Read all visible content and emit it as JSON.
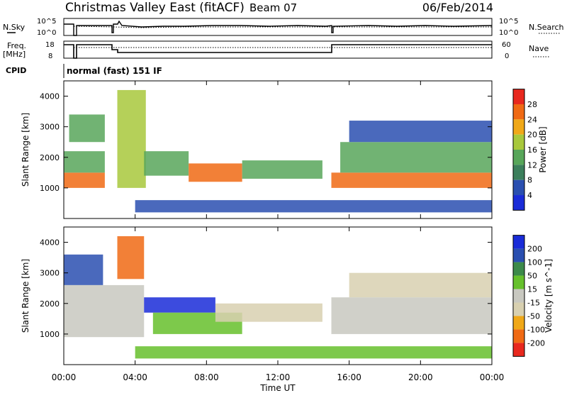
{
  "header": {
    "title": "Christmas Valley East (fitACF)",
    "beam": "Beam 07",
    "date": "06/Feb/2014"
  },
  "status_panels": {
    "noise": {
      "left_label": "N.Sky",
      "right_label": "N.Search",
      "left_ticks": [
        "10^5",
        "10^0"
      ],
      "right_ticks": [
        "10^5",
        "10^0"
      ]
    },
    "freq": {
      "left_label_1": "Freq.",
      "left_label_2": "[MHz]",
      "right_label": "Nave",
      "left_ticks": [
        "18",
        "8"
      ],
      "right_ticks": [
        "60",
        "0"
      ]
    },
    "cpid": {
      "label": "CPID",
      "value": "normal (fast) 151 IF"
    }
  },
  "x_axis": {
    "label": "Time UT",
    "ticks": [
      "00:00",
      "04:00",
      "08:00",
      "12:00",
      "16:00",
      "20:00",
      "00:00"
    ]
  },
  "colors": {
    "power": [
      "#1a2cd8",
      "#2a4fb0",
      "#3c7f5c",
      "#58a65a",
      "#a8c83c",
      "#f0a818",
      "#f06a14",
      "#e8281e"
    ],
    "velocity": [
      "#1a2cd8",
      "#2a4fb0",
      "#3c8a4a",
      "#66c02c",
      "#c8c8c0",
      "#d8d0b0",
      "#f0a818",
      "#f06a14",
      "#e8281e"
    ]
  },
  "chart_data": [
    {
      "type": "heatmap",
      "title": "Power",
      "xlabel": "Time UT",
      "ylabel": "Slant Range [km]",
      "x_range_hours": [
        0,
        24
      ],
      "ylim": [
        0,
        4500
      ],
      "y_ticks": [
        1000,
        2000,
        3000,
        4000
      ],
      "colorbar": {
        "label": "Power [dB]",
        "range": [
          0,
          32
        ],
        "tick_labels": [
          "4",
          "8",
          "12",
          "16",
          "20",
          "24",
          "28"
        ]
      },
      "features": [
        {
          "t0": 0.0,
          "t1": 2.3,
          "r0": 1000,
          "r1": 1500,
          "value": 26
        },
        {
          "t0": 0.0,
          "t1": 2.3,
          "r0": 1500,
          "r1": 2200,
          "value": 14
        },
        {
          "t0": 0.3,
          "t1": 2.3,
          "r0": 2500,
          "r1": 3400,
          "value": 12
        },
        {
          "t0": 3.0,
          "t1": 4.6,
          "r0": 1000,
          "r1": 4200,
          "value": 18
        },
        {
          "t0": 4.5,
          "t1": 7.0,
          "r0": 1400,
          "r1": 2200,
          "value": 14
        },
        {
          "t0": 7.0,
          "t1": 10.0,
          "r0": 1200,
          "r1": 1800,
          "value": 26
        },
        {
          "t0": 10.0,
          "t1": 14.5,
          "r0": 1300,
          "r1": 1900,
          "value": 14
        },
        {
          "t0": 15.0,
          "t1": 24.0,
          "r0": 1000,
          "r1": 1500,
          "value": 27
        },
        {
          "t0": 15.5,
          "t1": 24.0,
          "r0": 1500,
          "r1": 2500,
          "value": 12
        },
        {
          "t0": 16.0,
          "t1": 24.0,
          "r0": 2500,
          "r1": 3200,
          "value": 6
        },
        {
          "t0": 4.0,
          "t1": 24.0,
          "r0": 200,
          "r1": 600,
          "value": 6
        }
      ]
    },
    {
      "type": "heatmap",
      "title": "Velocity",
      "xlabel": "Time UT",
      "ylabel": "Slant Range [km]",
      "x_range_hours": [
        0,
        24
      ],
      "ylim": [
        0,
        4500
      ],
      "y_ticks": [
        1000,
        2000,
        3000,
        4000
      ],
      "colorbar": {
        "label": "Velocity [m s^-1]",
        "range": [
          -250,
          250
        ],
        "tick_labels": [
          "200",
          "100",
          "50",
          "15",
          "-15",
          "-50",
          "-100",
          "-200"
        ]
      },
      "features": [
        {
          "t0": 0.0,
          "t1": 2.2,
          "r0": 2600,
          "r1": 3600,
          "value": 180
        },
        {
          "t0": 0.0,
          "t1": 4.5,
          "r0": 900,
          "r1": 2600,
          "value": 0
        },
        {
          "t0": 3.0,
          "t1": 4.5,
          "r0": 2800,
          "r1": 4200,
          "value": -150
        },
        {
          "t0": 4.5,
          "t1": 8.5,
          "r0": 1700,
          "r1": 2200,
          "value": 200
        },
        {
          "t0": 5.0,
          "t1": 10.0,
          "r0": 1000,
          "r1": 1700,
          "value": 40
        },
        {
          "t0": 8.5,
          "t1": 14.5,
          "r0": 1400,
          "r1": 2000,
          "value": -80
        },
        {
          "t0": 15.0,
          "t1": 24.0,
          "r0": 1000,
          "r1": 2200,
          "value": 0
        },
        {
          "t0": 16.0,
          "t1": 24.0,
          "r0": 2200,
          "r1": 3000,
          "value": -30
        },
        {
          "t0": 4.0,
          "t1": 24.0,
          "r0": 200,
          "r1": 600,
          "value": 30
        }
      ]
    }
  ]
}
